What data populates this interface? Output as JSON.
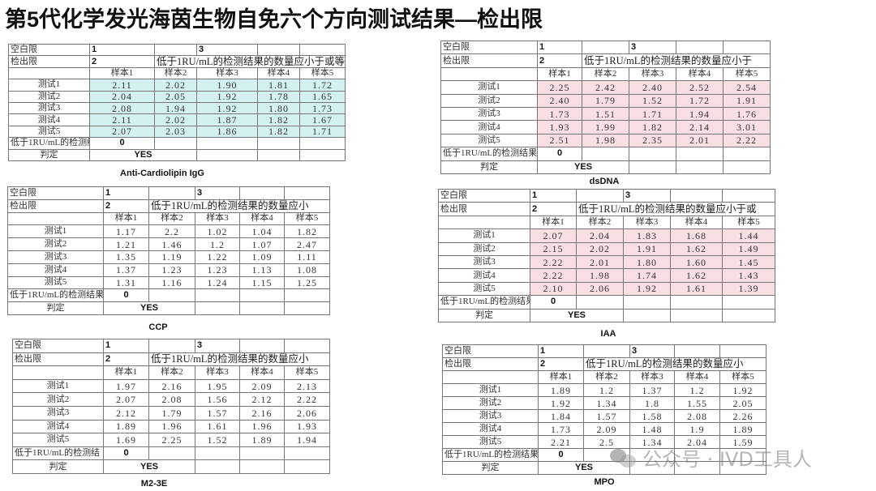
{
  "title": "第5代化学发光海茵生物自免六个方向测试结果—检出限",
  "watermark": "公众号 · IVD工具人",
  "colors": {
    "cyan_highlight": "#d4f1f1",
    "pink_highlight": "#f9dfe3"
  },
  "common": {
    "blank_limit_label": "空白限",
    "detect_limit_label": "检出限",
    "blank_values": [
      "1",
      "3"
    ],
    "detect_value": "2",
    "samples": [
      "样本1",
      "样本2",
      "样本3",
      "样本4",
      "样本5"
    ],
    "tests": [
      "测试1",
      "测试2",
      "测试3",
      "测试4",
      "测试5"
    ],
    "judge_label": "判定"
  },
  "tables": [
    {
      "caption": "Anti-Cardiolipin IgG",
      "highlight": "cyan",
      "note": "低于1RU/mL的检测结果的数量应小于或等",
      "below_label": "低于1RU/mL的检测结:",
      "below_count": "0",
      "judge": "YES",
      "values": [
        [
          "2.11",
          "2.02",
          "1.90",
          "1.81",
          "1.72"
        ],
        [
          "2.04",
          "2.05",
          "1.92",
          "1.78",
          "1.65"
        ],
        [
          "2.08",
          "1.94",
          "1.92",
          "1.80",
          "1.73"
        ],
        [
          "2.11",
          "2.02",
          "1.87",
          "1.82",
          "1.67"
        ],
        [
          "2.07",
          "2.03",
          "1.86",
          "1.82",
          "1.71"
        ]
      ]
    },
    {
      "caption": "dsDNA",
      "highlight": "pink",
      "note": "低于1RU/mL的检测结果的数量应小于",
      "below_label": "低于1RU/mL的检测结果",
      "below_count": "0",
      "judge": "YES",
      "values": [
        [
          "2.25",
          "2.42",
          "2.40",
          "2.52",
          "2.54"
        ],
        [
          "2.40",
          "1.79",
          "1.52",
          "1.72",
          "1.91"
        ],
        [
          "1.73",
          "1.51",
          "1.71",
          "1.94",
          "1.76"
        ],
        [
          "1.93",
          "1.99",
          "1.82",
          "2.14",
          "3.01"
        ],
        [
          "2.51",
          "1.98",
          "2.35",
          "2.01",
          "2.22"
        ]
      ]
    },
    {
      "caption": "CCP",
      "highlight": "none",
      "note": "低于1RU/mL的检测结果的数量应小",
      "below_label": "低于1RU/mL的检测结果",
      "below_count": "0",
      "judge": "YES",
      "values": [
        [
          "1.17",
          "2.2",
          "1.02",
          "1.04",
          "1.82"
        ],
        [
          "1.21",
          "1.46",
          "1.2",
          "1.07",
          "2.47"
        ],
        [
          "1.35",
          "1.19",
          "1.22",
          "1.09",
          "1.11"
        ],
        [
          "1.37",
          "1.23",
          "1.23",
          "1.13",
          "1.08"
        ],
        [
          "1.31",
          "1.16",
          "1.24",
          "1.15",
          "1.25"
        ]
      ]
    },
    {
      "caption": "IAA",
      "highlight": "pink",
      "note": "低于1RU/mL的检测结果的数量应小于或",
      "below_label": "低于1RU/mL的检测结果",
      "below_count": "0",
      "judge": "YES",
      "values": [
        [
          "2.07",
          "2.04",
          "1.83",
          "1.68",
          "1.44"
        ],
        [
          "2.15",
          "2.02",
          "1.91",
          "1.62",
          "1.49"
        ],
        [
          "2.22",
          "2.01",
          "1.80",
          "1.60",
          "1.45"
        ],
        [
          "2.22",
          "1.98",
          "1.74",
          "1.62",
          "1.43"
        ],
        [
          "2.10",
          "2.06",
          "1.92",
          "1.61",
          "1.39"
        ]
      ]
    },
    {
      "caption": "M2-3E",
      "highlight": "none",
      "note": "低于1RU/mL的检测结果的数量应小",
      "below_label": "低于1RU/mL的检测结",
      "below_count": "0",
      "judge": "YES",
      "values": [
        [
          "1.97",
          "2.16",
          "1.95",
          "2.09",
          "2.13"
        ],
        [
          "2.07",
          "2.08",
          "1.56",
          "2.12",
          "2.22"
        ],
        [
          "2.12",
          "1.79",
          "1.57",
          "2.16",
          "2.06"
        ],
        [
          "1.89",
          "1.96",
          "1.61",
          "1.96",
          "1.93"
        ],
        [
          "1.69",
          "2.25",
          "1.52",
          "1.89",
          "1.94"
        ]
      ]
    },
    {
      "caption": "MPO",
      "highlight": "none",
      "note": "低于1RU/mL的检测结果的数量应小",
      "below_label": "低于1RU/mL的检测结果",
      "below_count": "0",
      "judge": "YES",
      "values": [
        [
          "1.89",
          "1.2",
          "1.37",
          "1.2",
          "1.92"
        ],
        [
          "1.92",
          "1.34",
          "1.8",
          "1.55",
          "2.05"
        ],
        [
          "1.84",
          "1.57",
          "1.58",
          "2.08",
          "2.26"
        ],
        [
          "1.73",
          "2.09",
          "1.48",
          "1.9",
          "1.89"
        ],
        [
          "2.21",
          "2.5",
          "1.34",
          "2.04",
          "1.59"
        ]
      ]
    }
  ]
}
